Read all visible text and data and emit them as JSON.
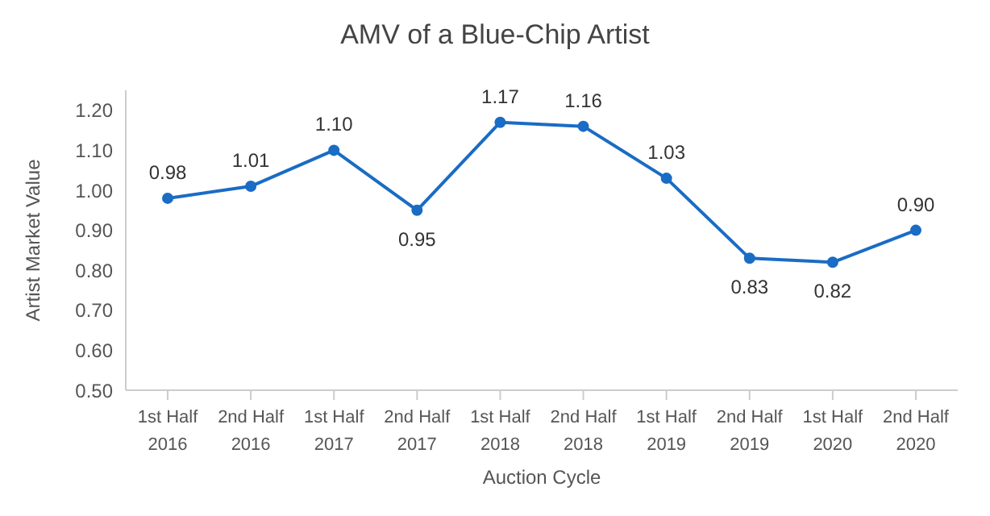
{
  "chart_data": {
    "type": "line",
    "title": "AMV of a Blue-Chip Artist",
    "xlabel": "Auction Cycle",
    "ylabel": "Artist Market Value",
    "categories": [
      "1st Half 2016",
      "2nd Half 2016",
      "1st Half 2017",
      "2nd Half 2017",
      "1st Half 2018",
      "2nd Half 2018",
      "1st Half 2019",
      "2nd Half 2019",
      "1st Half 2020",
      "2nd Half 2020"
    ],
    "series": [
      {
        "color": "#1a6cc4",
        "values": [
          0.98,
          1.01,
          1.1,
          0.95,
          1.17,
          1.16,
          1.03,
          0.83,
          0.82,
          0.9
        ],
        "value_labels": [
          "0.98",
          "1.01",
          "1.10",
          "0.95",
          "1.17",
          "1.16",
          "1.03",
          "0.83",
          "0.82",
          "0.90"
        ]
      }
    ],
    "ylim": [
      0.5,
      1.25
    ],
    "yticks": [
      {
        "value": 0.5,
        "label": "0.50"
      },
      {
        "value": 0.6,
        "label": "0.60"
      },
      {
        "value": 0.7,
        "label": "0.70"
      },
      {
        "value": 0.8,
        "label": "0.80"
      },
      {
        "value": 0.9,
        "label": "0.90"
      },
      {
        "value": 1.0,
        "label": "1.00"
      },
      {
        "value": 1.1,
        "label": "1.10"
      },
      {
        "value": 1.2,
        "label": "1.20"
      }
    ],
    "marker": "circle",
    "grid": false,
    "legend": false
  }
}
